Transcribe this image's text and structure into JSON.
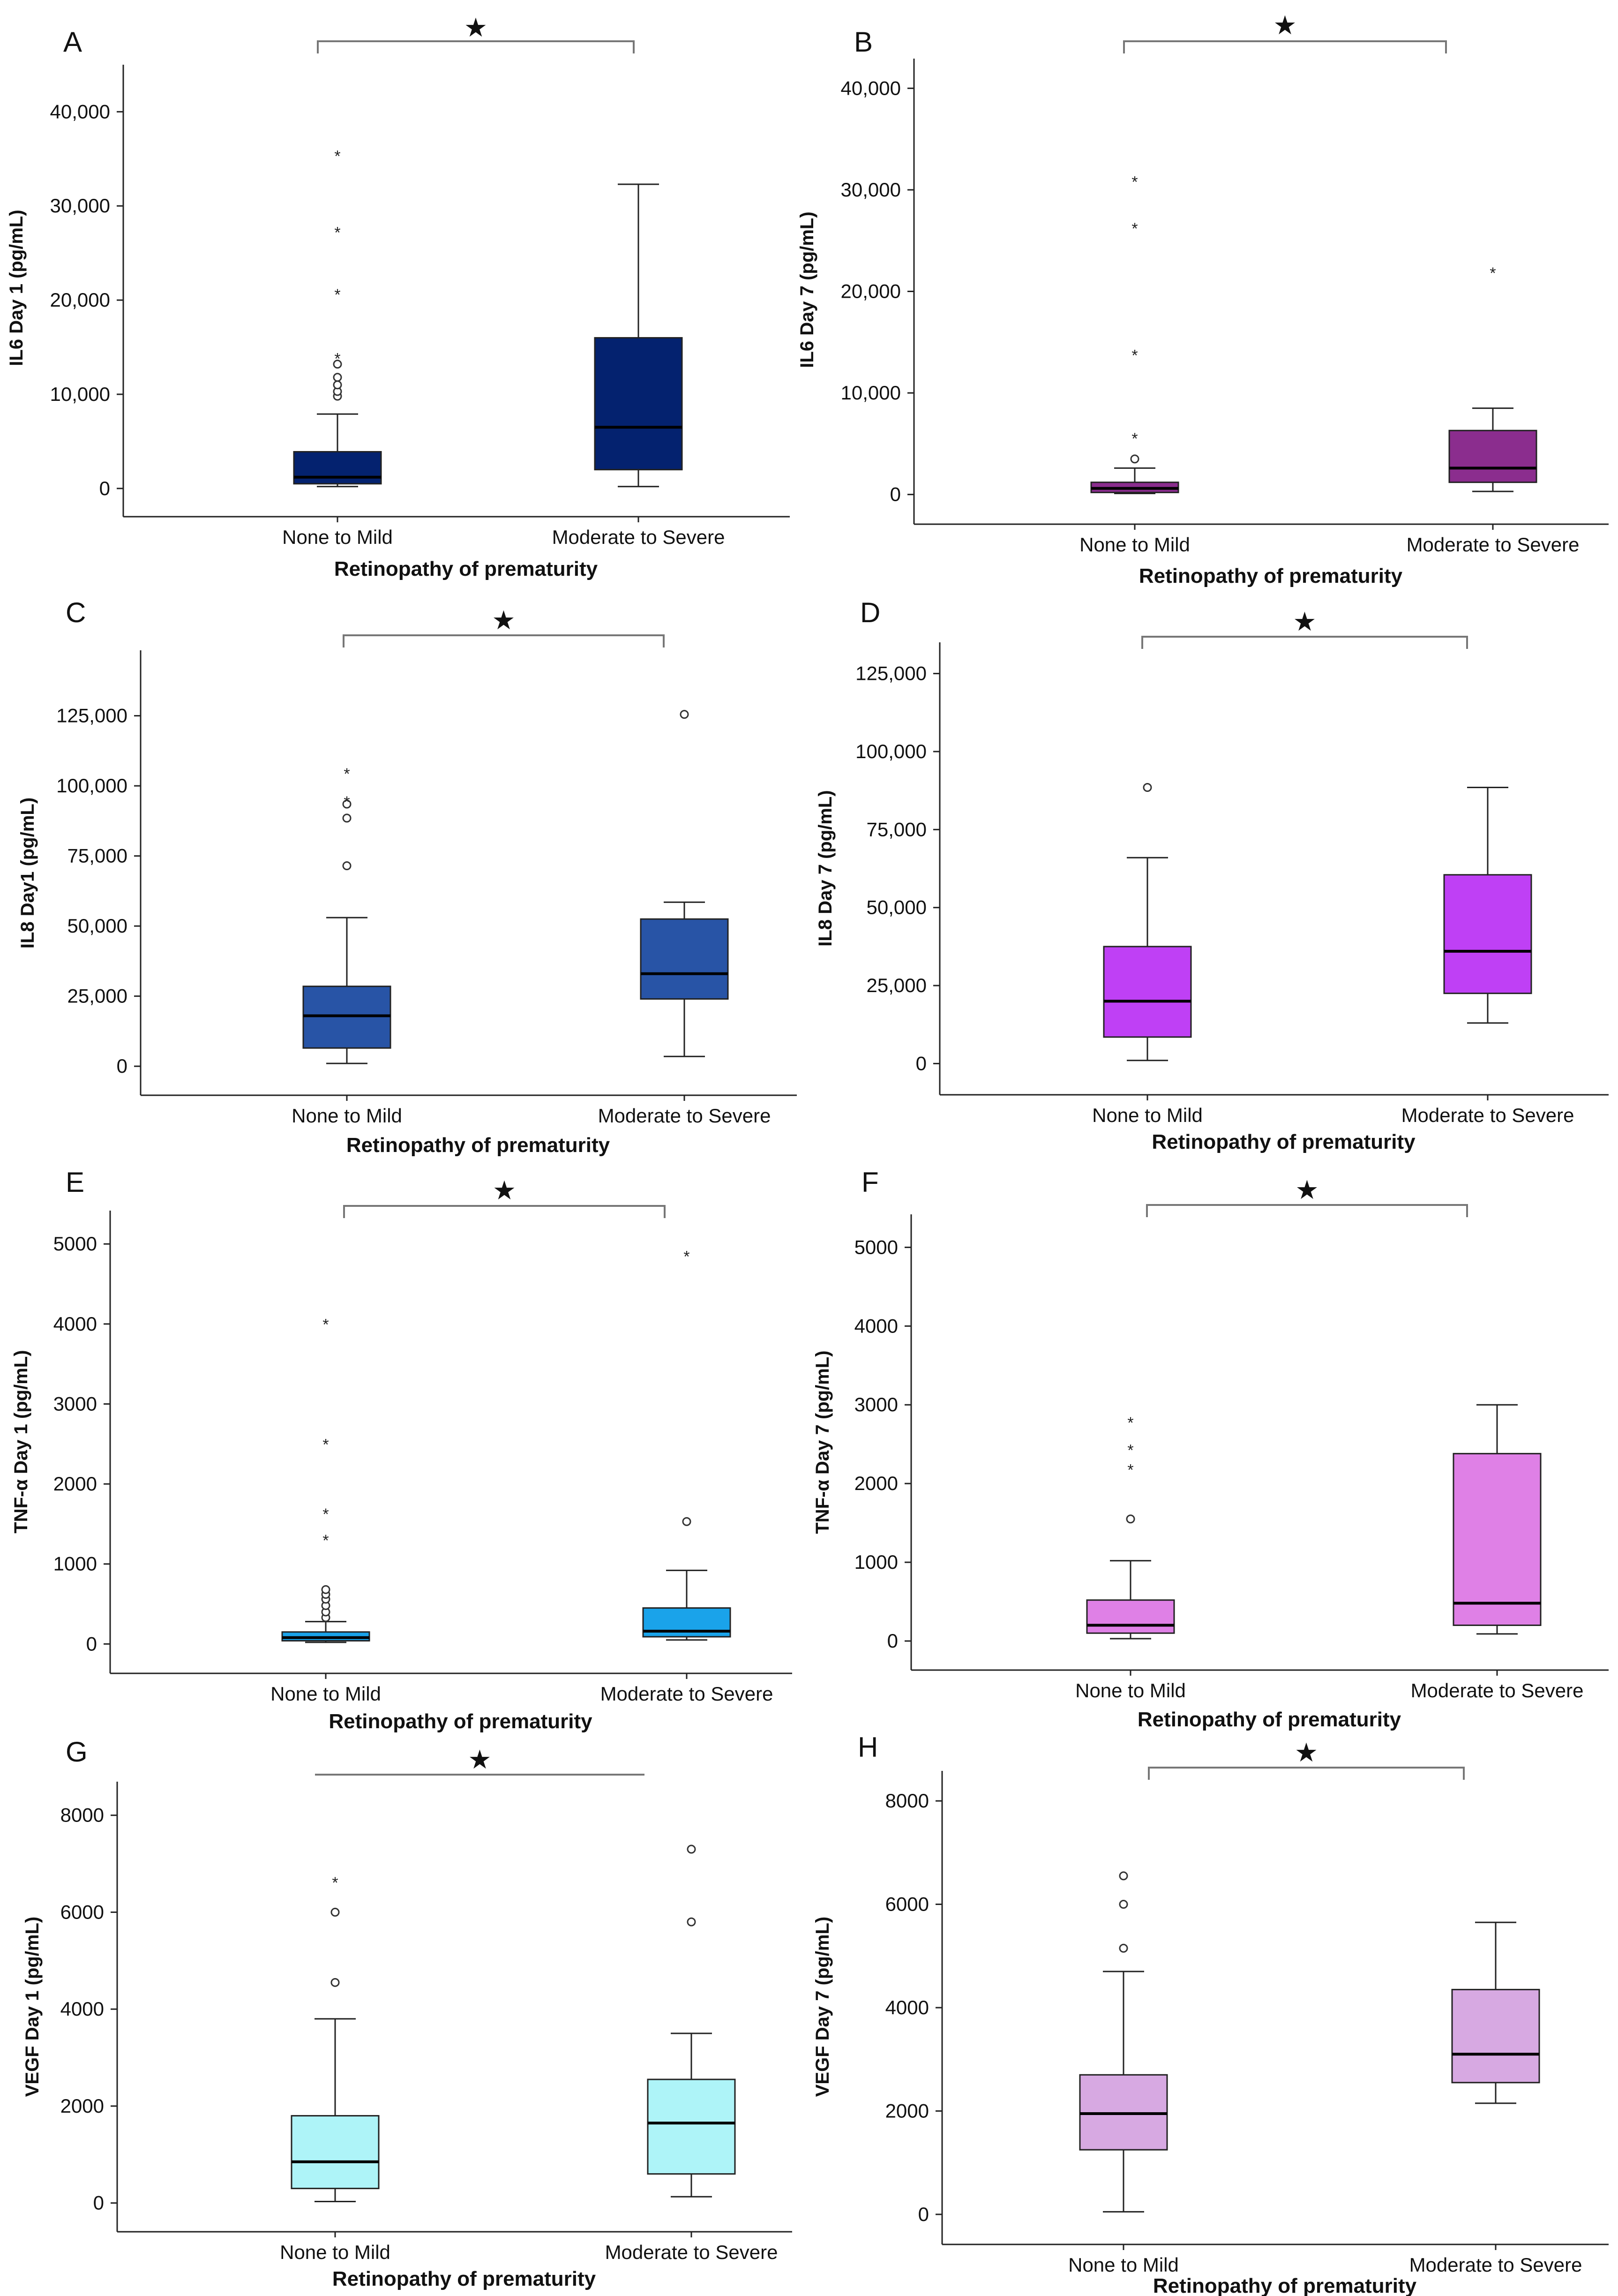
{
  "figure": {
    "x_axis_title": "Retinopathy of prematurity",
    "categories": [
      "None to Mild",
      "Moderate to Severe"
    ],
    "significance_marker": "★"
  },
  "chart_data": [
    {
      "type": "boxplot",
      "panel": "A",
      "ylabel": "IL6 Day 1 (pg/mL)",
      "xlabel": "Retinopathy of prematurity",
      "categories": [
        "None to Mild",
        "Moderate to Severe"
      ],
      "ylim": [
        -2000,
        44000
      ],
      "yticks": [
        0,
        10000,
        20000,
        30000,
        40000
      ],
      "ytick_labels": [
        "0",
        "10,000",
        "20,000",
        "30,000",
        "40,000"
      ],
      "box_color": "#04226f",
      "groups": [
        {
          "category": "None to Mild",
          "min": 200,
          "q1": 500,
          "median": 1200,
          "q3": 3900,
          "max": 7900,
          "outliers": [
            9800,
            10300,
            11000,
            11800,
            13200
          ],
          "extremes": [
            14000,
            20800,
            27400,
            35500
          ]
        },
        {
          "category": "Moderate to Severe",
          "min": 200,
          "q1": 2000,
          "median": 6500,
          "q3": 16000,
          "max": 32300,
          "outliers": [],
          "extremes": []
        }
      ],
      "significance": "★"
    },
    {
      "type": "boxplot",
      "panel": "B",
      "ylabel": "IL6 Day 7 (pg/mL)",
      "xlabel": "Retinopathy of prematurity",
      "categories": [
        "None to Mild",
        "Moderate to Severe"
      ],
      "ylim": [
        -2000,
        42000
      ],
      "yticks": [
        0,
        10000,
        20000,
        30000,
        40000
      ],
      "ytick_labels": [
        "0",
        "10,000",
        "20,000",
        "30,000",
        "40,000"
      ],
      "box_color": "#8b2d8e",
      "groups": [
        {
          "category": "None to Mild",
          "min": 100,
          "q1": 200,
          "median": 600,
          "q3": 1200,
          "max": 2600,
          "outliers": [
            3500
          ],
          "extremes": [
            5700,
            13900,
            26400,
            31000
          ]
        },
        {
          "category": "Moderate to Severe",
          "min": 300,
          "q1": 1200,
          "median": 2600,
          "q3": 6300,
          "max": 8500,
          "outliers": [],
          "extremes": [
            22000
          ]
        }
      ],
      "significance": "★"
    },
    {
      "type": "boxplot",
      "panel": "C",
      "ylabel": "IL8 Day1 (pg/mL)",
      "xlabel": "Retinopathy of prematurity",
      "categories": [
        "None to Mild",
        "Moderate to Severe"
      ],
      "ylim": [
        -7000,
        145000
      ],
      "yticks": [
        0,
        25000,
        50000,
        75000,
        100000,
        125000
      ],
      "ytick_labels": [
        "0",
        "25,000",
        "50,000",
        "75,000",
        "100,000",
        "125,000"
      ],
      "box_color": "#2854a6",
      "groups": [
        {
          "category": "None to Mild",
          "min": 1000,
          "q1": 6500,
          "median": 18000,
          "q3": 28500,
          "max": 53000,
          "outliers": [
            71500,
            88500,
            93500
          ],
          "extremes": [
            95000,
            105000
          ]
        },
        {
          "category": "Moderate to Severe",
          "min": 3500,
          "q1": 24000,
          "median": 33000,
          "q3": 52500,
          "max": 58500,
          "outliers": [
            125500
          ],
          "extremes": []
        }
      ],
      "significance": "★"
    },
    {
      "type": "boxplot",
      "panel": "D",
      "ylabel": "IL8 Day 7 (pg/mL)",
      "xlabel": "Retinopathy of prematurity",
      "categories": [
        "None to Mild",
        "Moderate to Severe"
      ],
      "ylim": [
        -7000,
        132000
      ],
      "yticks": [
        0,
        25000,
        50000,
        75000,
        100000,
        125000
      ],
      "ytick_labels": [
        "0",
        "25,000",
        "50,000",
        "75,000",
        "100,000",
        "125,000"
      ],
      "box_color": "#bf40f5",
      "groups": [
        {
          "category": "None to Mild",
          "min": 1000,
          "q1": 8500,
          "median": 20000,
          "q3": 37500,
          "max": 66000,
          "outliers": [
            88500
          ],
          "extremes": []
        },
        {
          "category": "Moderate to Severe",
          "min": 13000,
          "q1": 22500,
          "median": 36000,
          "q3": 60500,
          "max": 88500,
          "outliers": [],
          "extremes": []
        }
      ],
      "significance": "★"
    },
    {
      "type": "boxplot",
      "panel": "E",
      "ylabel": "TNF-α Day 1 (pg/mL)",
      "xlabel": "Retinopathy of prematurity",
      "categories": [
        "None to Mild",
        "Moderate to Severe"
      ],
      "ylim": [
        -250,
        5300
      ],
      "yticks": [
        0,
        1000,
        2000,
        3000,
        4000,
        5000
      ],
      "ytick_labels": [
        "0",
        "1000",
        "2000",
        "3000",
        "4000",
        "5000"
      ],
      "box_color": "#1aa3ea",
      "groups": [
        {
          "category": "None to Mild",
          "min": 20,
          "q1": 40,
          "median": 80,
          "q3": 150,
          "max": 280,
          "outliers": [
            330,
            400,
            480,
            560,
            620,
            680
          ],
          "extremes": [
            1320,
            1650,
            2520,
            4020
          ]
        },
        {
          "category": "Moderate to Severe",
          "min": 50,
          "q1": 90,
          "median": 160,
          "q3": 450,
          "max": 920,
          "outliers": [
            1530
          ],
          "extremes": [
            4870
          ]
        }
      ],
      "significance": "★"
    },
    {
      "type": "boxplot",
      "panel": "F",
      "ylabel": "TNF-α Day 7 (pg/mL)",
      "xlabel": "Retinopathy of prematurity",
      "categories": [
        "None to Mild",
        "Moderate to Severe"
      ],
      "ylim": [
        -250,
        5300
      ],
      "yticks": [
        0,
        1000,
        2000,
        3000,
        4000,
        5000
      ],
      "ytick_labels": [
        "0",
        "1000",
        "2000",
        "3000",
        "4000",
        "5000"
      ],
      "box_color": "#df80e6",
      "groups": [
        {
          "category": "None to Mild",
          "min": 30,
          "q1": 100,
          "median": 200,
          "q3": 520,
          "max": 1020,
          "outliers": [
            1550
          ],
          "extremes": [
            2200,
            2450,
            2800
          ]
        },
        {
          "category": "Moderate to Severe",
          "min": 90,
          "q1": 200,
          "median": 480,
          "q3": 2380,
          "max": 3000,
          "outliers": [],
          "extremes": []
        }
      ],
      "significance": "★"
    },
    {
      "type": "boxplot",
      "panel": "G",
      "ylabel": "VEGF Day 1 (pg/mL)",
      "xlabel": "Retinopathy of prematurity",
      "categories": [
        "None to Mild",
        "Moderate to Severe"
      ],
      "ylim": [
        -400,
        8500
      ],
      "yticks": [
        0,
        2000,
        4000,
        6000,
        8000
      ],
      "ytick_labels": [
        "0",
        "2000",
        "4000",
        "6000",
        "8000"
      ],
      "box_color": "#aef4f8",
      "groups": [
        {
          "category": "None to Mild",
          "min": 30,
          "q1": 300,
          "median": 850,
          "q3": 1800,
          "max": 3800,
          "outliers": [
            4550,
            6000
          ],
          "extremes": [
            6650
          ]
        },
        {
          "category": "Moderate to Severe",
          "min": 130,
          "q1": 600,
          "median": 1650,
          "q3": 2550,
          "max": 3500,
          "outliers": [
            5800,
            7300
          ],
          "extremes": []
        }
      ],
      "significance": "★"
    },
    {
      "type": "boxplot",
      "panel": "H",
      "ylabel": "VEGF Day 7 (pg/mL)",
      "xlabel": "Retinopathy of prematurity",
      "categories": [
        "None to Mild",
        "Moderate to Severe"
      ],
      "ylim": [
        -400,
        8400
      ],
      "yticks": [
        0,
        2000,
        4000,
        6000,
        8000
      ],
      "ytick_labels": [
        "0",
        "2000",
        "4000",
        "6000",
        "8000"
      ],
      "box_color": "#d7a9e2",
      "groups": [
        {
          "category": "None to Mild",
          "min": 50,
          "q1": 1250,
          "median": 1950,
          "q3": 2700,
          "max": 4700,
          "outliers": [
            5150,
            6000,
            6550
          ],
          "extremes": []
        },
        {
          "category": "Moderate to Severe",
          "min": 2150,
          "q1": 2550,
          "median": 3100,
          "q3": 4350,
          "max": 5650,
          "outliers": [],
          "extremes": []
        }
      ],
      "significance": "★"
    }
  ]
}
